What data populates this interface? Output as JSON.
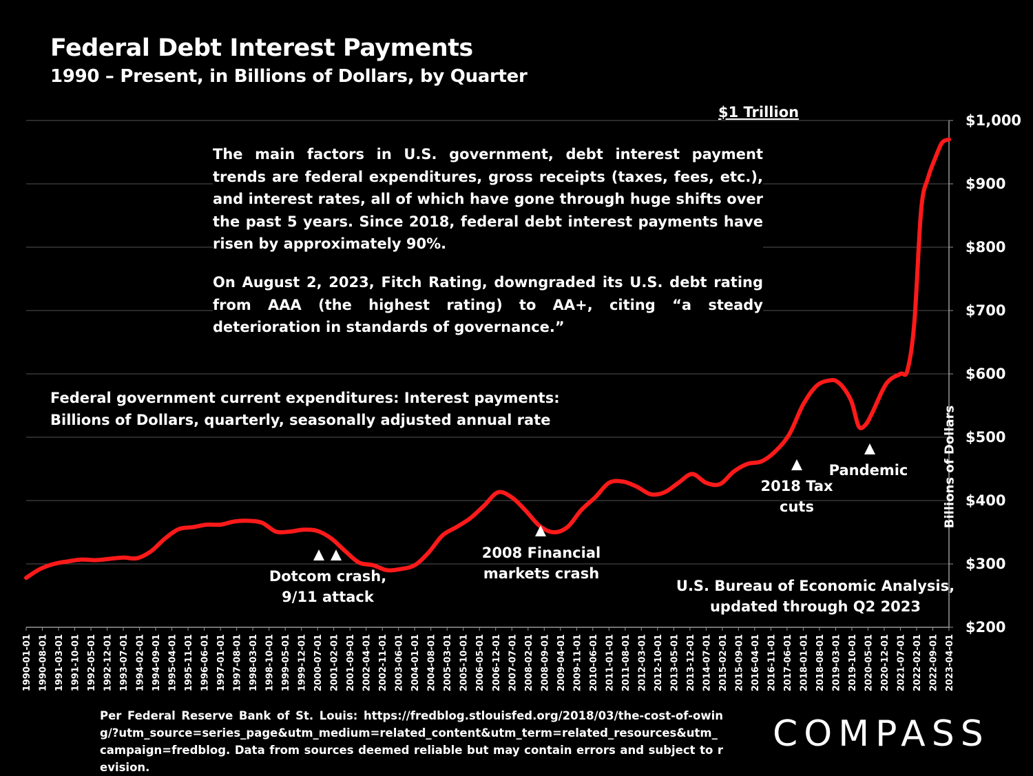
{
  "header": {
    "title": "Federal Debt Interest Payments",
    "subtitle": "1990 – Present, in Billions of Dollars, by Quarter"
  },
  "marker_label": "$1 Trillion",
  "commentary": {
    "p1": "The main factors in U.S. government, debt interest payment trends are federal expenditures, gross receipts (taxes, fees, etc.), and interest rates, all of which have gone through huge shifts over the past 5 years. Since 2018, federal debt interest payments have risen by approximately 90%.",
    "p2": "On August 2, 2023, Fitch Rating, downgraded its U.S. debt rating from AAA (the highest rating) to AA+, citing “a steady deterioration in standards of governance.”"
  },
  "series_description": {
    "line1": "Federal government current expenditures: Interest payments:",
    "line2": "Billions of Dollars, quarterly, seasonally adjusted annual rate"
  },
  "annotations": {
    "dotcom": {
      "line1": "Dotcom crash,",
      "line2": "9/11 attack"
    },
    "financial": {
      "line1": "2008 Financial",
      "line2": "markets crash"
    },
    "tax": {
      "line1": "2018 Tax",
      "line2": "cuts"
    },
    "pandemic": {
      "line1": "Pandemic"
    }
  },
  "source_note": {
    "line1": "U.S. Bureau of Economic Analysis,",
    "line2": "updated through Q2 2023"
  },
  "footer": "Per Federal Reserve Bank of St. Louis: https://fredblog.stlouisfed.org/2018/03/the-cost-of-owing/?utm_source=series_page&utm_medium=related_content&utm_term=related_resources&utm_campaign=fredblog. Data from sources deemed reliable but may contain errors and subject to revision.",
  "logo": "COMPASS",
  "colors": {
    "line": "#ff1a1a",
    "background": "#000000",
    "grid": "#555555",
    "text": "#ffffff"
  },
  "chart_data": {
    "type": "line",
    "ylabel": "Billions of Dollars",
    "ylim": [
      200,
      1000
    ],
    "y_ticks": [
      "$200",
      "$300",
      "$400",
      "$500",
      "$600",
      "$700",
      "$800",
      "$900",
      "$1,000"
    ],
    "y_tick_values": [
      200,
      300,
      400,
      500,
      600,
      700,
      800,
      900,
      1000
    ],
    "x_tick_labels": [
      "1990-01-01",
      "1990-08-01",
      "1991-03-01",
      "1991-10-01",
      "1992-05-01",
      "1992-12-01",
      "1993-07-01",
      "1994-02-01",
      "1994-09-01",
      "1995-04-01",
      "1995-11-01",
      "1996-06-01",
      "1997-01-01",
      "1997-08-01",
      "1998-03-01",
      "1998-10-01",
      "1999-05-01",
      "1999-12-01",
      "2000-07-01",
      "2001-02-01",
      "2001-09-01",
      "2002-04-01",
      "2002-11-01",
      "2003-06-01",
      "2004-01-01",
      "2004-08-01",
      "2005-03-01",
      "2005-10-01",
      "2006-05-01",
      "2006-12-01",
      "2007-07-01",
      "2008-02-01",
      "2008-09-01",
      "2009-04-01",
      "2009-11-01",
      "2010-06-01",
      "2011-01-01",
      "2011-08-01",
      "2012-03-01",
      "2012-10-01",
      "2013-05-01",
      "2013-12-01",
      "2014-07-01",
      "2015-02-01",
      "2015-09-01",
      "2016-04-01",
      "2016-11-01",
      "2017-06-01",
      "2018-01-01",
      "2018-08-01",
      "2019-03-01",
      "2019-10-01",
      "2020-05-01",
      "2020-12-01",
      "2021-07-01",
      "2022-02-01",
      "2022-09-01",
      "2023-04-01"
    ],
    "grid": true,
    "series": [
      {
        "x": [
          1990.0,
          1990.5,
          1991.0,
          1991.5,
          1992.0,
          1992.5,
          1993.0,
          1993.5,
          1994.0,
          1994.5,
          1995.0,
          1995.5,
          1996.0,
          1996.5,
          1997.0,
          1997.5,
          1998.0,
          1998.5,
          1999.0,
          1999.5,
          2000.0,
          2000.5,
          2001.0,
          2001.5,
          2002.0,
          2002.5,
          2003.0,
          2003.5,
          2004.0,
          2004.5,
          2005.0,
          2005.5,
          2006.0,
          2006.5,
          2007.0,
          2007.5,
          2008.0,
          2008.5,
          2009.0,
          2009.5,
          2010.0,
          2010.5,
          2011.0,
          2011.5,
          2012.0,
          2012.5,
          2013.0,
          2013.5,
          2014.0,
          2014.5,
          2015.0,
          2015.5,
          2016.0,
          2016.5,
          2017.0,
          2017.5,
          2018.0,
          2018.5,
          2019.0,
          2019.25,
          2019.5,
          2019.75,
          2020.0,
          2020.25,
          2020.5,
          2021.0,
          2021.5,
          2021.75,
          2022.0,
          2022.25,
          2022.5,
          2022.75,
          2023.0,
          2023.25
        ],
        "values": [
          278,
          292,
          300,
          304,
          307,
          306,
          308,
          310,
          309,
          320,
          340,
          355,
          358,
          362,
          362,
          367,
          368,
          365,
          351,
          351,
          354,
          352,
          340,
          320,
          302,
          298,
          290,
          292,
          298,
          318,
          345,
          358,
          372,
          392,
          413,
          405,
          384,
          360,
          350,
          358,
          385,
          405,
          428,
          430,
          422,
          410,
          413,
          428,
          442,
          428,
          426,
          446,
          458,
          462,
          478,
          505,
          552,
          582,
          590,
          587,
          575,
          555,
          517,
          520,
          540,
          585,
          600,
          605,
          680,
          860,
          910,
          940,
          965,
          970
        ]
      }
    ]
  }
}
